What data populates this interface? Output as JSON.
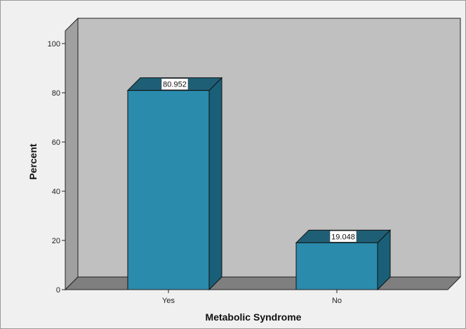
{
  "chart_data": {
    "type": "bar",
    "style": "3d",
    "categories": [
      "Yes",
      "No"
    ],
    "values": [
      80.952,
      19.048
    ],
    "data_labels": [
      "80.952",
      "19.048"
    ],
    "title": "",
    "xlabel": "Metabolic Syndrome",
    "ylabel": "Percent",
    "ylim": [
      0,
      100
    ],
    "yticks": [
      0,
      20,
      40,
      60,
      80,
      100
    ],
    "grid": false,
    "legend": "none",
    "colors": {
      "bar_front": "#2a8bad",
      "bar_side": "#1a5f78",
      "bar_top": "#1f5f76",
      "back_wall": "#c0c0c0",
      "floor": "#7f7f7f",
      "left_wall": "#a0a0a0",
      "frame_background": "#f0f0f0"
    }
  }
}
